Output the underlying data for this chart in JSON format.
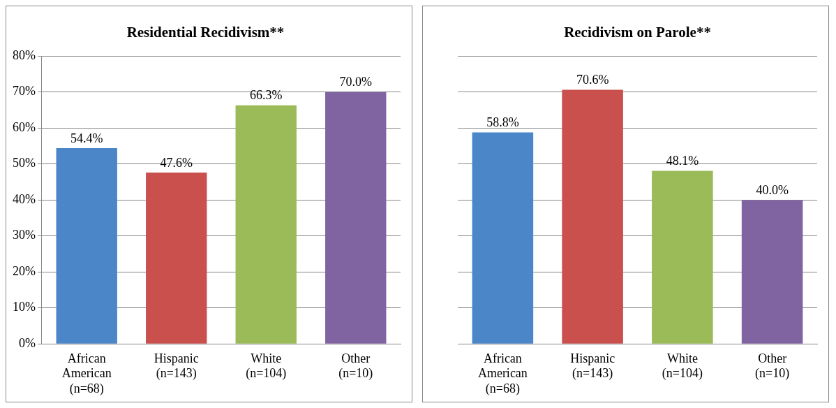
{
  "chart_data": [
    {
      "type": "bar",
      "title": "Residential Recidivism**",
      "categories": [
        "African\nAmerican\n(n=68)",
        "Hispanic\n(n=143)",
        "White\n(n=104)",
        "Other\n(n=10)"
      ],
      "values": [
        54.4,
        47.6,
        66.3,
        70.0
      ],
      "value_labels": [
        "54.4%",
        "47.6%",
        "66.3%",
        "70.0%"
      ],
      "colors": [
        "#4a86c8",
        "#c9504d",
        "#9bbb59",
        "#8064a2"
      ],
      "ylim": [
        0,
        80
      ],
      "yticks": [
        {
          "value": 0,
          "label": "0%"
        },
        {
          "value": 10,
          "label": "10%"
        },
        {
          "value": 20,
          "label": "20%"
        },
        {
          "value": 30,
          "label": "30%"
        },
        {
          "value": 40,
          "label": "40%"
        },
        {
          "value": 50,
          "label": "50%"
        },
        {
          "value": 60,
          "label": "60%"
        },
        {
          "value": 70,
          "label": "70%"
        },
        {
          "value": 80,
          "label": "80%"
        }
      ],
      "grid": "y",
      "legend": false
    },
    {
      "type": "bar",
      "title": "Recidivism on Parole**",
      "categories": [
        "African\nAmerican\n(n=68)",
        "Hispanic\n(n=143)",
        "White\n(n=104)",
        "Other\n(n=10)"
      ],
      "values": [
        58.8,
        70.6,
        48.1,
        40.0
      ],
      "value_labels": [
        "58.8%",
        "70.6%",
        "48.1%",
        "40.0%"
      ],
      "colors": [
        "#4a86c8",
        "#c9504d",
        "#9bbb59",
        "#8064a2"
      ],
      "ylim": [
        0,
        80
      ],
      "yticks": [
        0,
        10,
        20,
        30,
        40,
        50,
        60,
        70,
        80
      ],
      "grid": "y",
      "legend": false,
      "tick_labels": "x"
    }
  ]
}
